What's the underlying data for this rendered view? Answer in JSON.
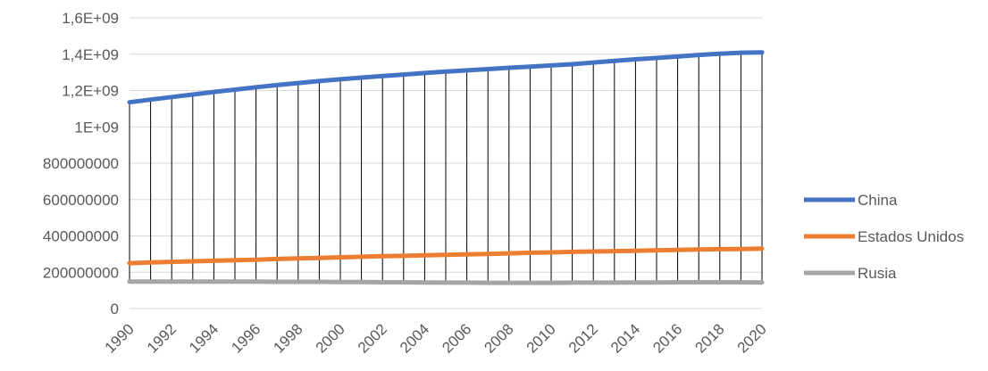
{
  "chart_data": {
    "type": "line",
    "title": "",
    "xlabel": "",
    "ylabel": "",
    "ylim": [
      0,
      1600000000
    ],
    "grid": true,
    "drop_lines": true,
    "legend_position": "right",
    "y_ticks": [
      "0",
      "200000000",
      "400000000",
      "600000000",
      "800000000",
      "1E+09",
      "1,2E+09",
      "1,4E+09",
      "1,6E+09"
    ],
    "x": [
      1990,
      1991,
      1992,
      1993,
      1994,
      1995,
      1996,
      1997,
      1998,
      1999,
      2000,
      2001,
      2002,
      2003,
      2004,
      2005,
      2006,
      2007,
      2008,
      2009,
      2010,
      2011,
      2012,
      2013,
      2014,
      2015,
      2016,
      2017,
      2018,
      2019,
      2020
    ],
    "x_tick_labels": [
      "1990",
      "1992",
      "1994",
      "1996",
      "1998",
      "2000",
      "2002",
      "2004",
      "2006",
      "2008",
      "2010",
      "2012",
      "2014",
      "2016",
      "2018",
      "2020"
    ],
    "series": [
      {
        "name": "China",
        "color": "#4472C4",
        "values": [
          1135000000,
          1150000000,
          1164000000,
          1178000000,
          1192000000,
          1205000000,
          1218000000,
          1230000000,
          1241000000,
          1252000000,
          1262000000,
          1271000000,
          1280000000,
          1288000000,
          1296000000,
          1304000000,
          1311000000,
          1318000000,
          1325000000,
          1331000000,
          1338000000,
          1345000000,
          1354000000,
          1363000000,
          1372000000,
          1379000000,
          1387000000,
          1396000000,
          1402000000,
          1408000000,
          1410000000
        ]
      },
      {
        "name": "Estados Unidos",
        "color": "#ED7D31",
        "values": [
          250000000,
          254000000,
          257000000,
          260000000,
          263000000,
          266000000,
          269000000,
          273000000,
          276000000,
          279000000,
          282000000,
          285000000,
          288000000,
          290000000,
          293000000,
          296000000,
          298000000,
          301000000,
          304000000,
          307000000,
          309000000,
          312000000,
          314000000,
          316000000,
          318000000,
          321000000,
          323000000,
          325000000,
          327000000,
          328000000,
          330000000
        ]
      },
      {
        "name": "Rusia",
        "color": "#A5A5A5",
        "values": [
          148000000,
          148000000,
          148000000,
          148000000,
          148000000,
          148000000,
          148000000,
          147000000,
          147000000,
          147000000,
          146000000,
          146000000,
          145000000,
          145000000,
          144000000,
          143000000,
          143000000,
          142000000,
          142000000,
          142000000,
          142000000,
          143000000,
          143000000,
          143000000,
          144000000,
          144000000,
          145000000,
          145000000,
          145000000,
          145000000,
          144000000
        ]
      }
    ]
  }
}
